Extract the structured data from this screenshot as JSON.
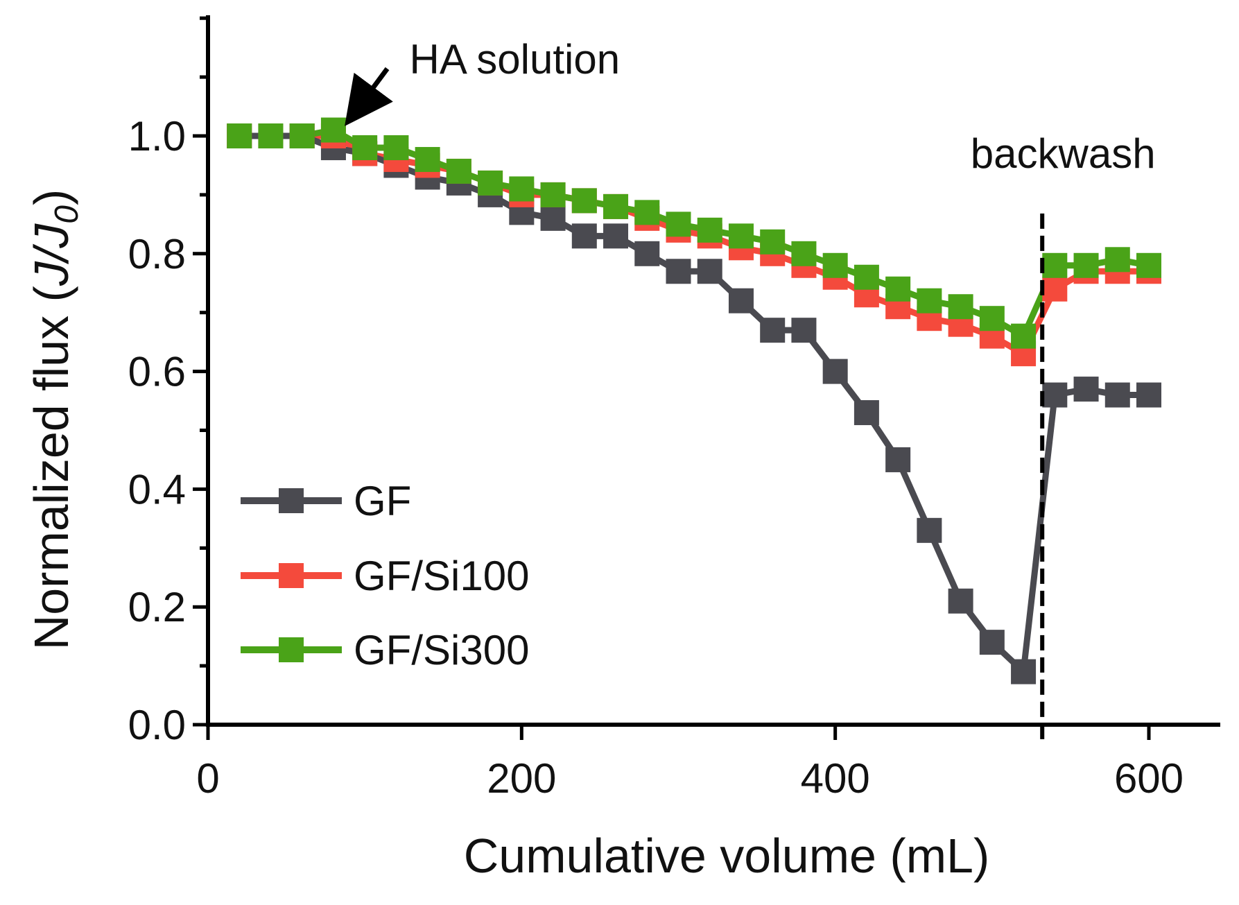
{
  "chart_data": {
    "type": "line",
    "xlabel": "Cumulative volume (mL)",
    "ylabel_prefix": "Normalized flux (",
    "ylabel_italic": "J/J",
    "ylabel_sub": "0",
    "ylabel_suffix": ")",
    "xlim": [
      0,
      650
    ],
    "ylim": [
      0,
      1.2
    ],
    "xticks": [
      0,
      200,
      400,
      600
    ],
    "xtick_labels": [
      "0",
      "200",
      "400",
      "600"
    ],
    "yticks": [
      0,
      0.2,
      0.4,
      0.6,
      0.8,
      1.0
    ],
    "ytick_labels": [
      "0.0",
      "0.2",
      "0.4",
      "0.6",
      "0.8",
      "1.0"
    ],
    "y_minor_step": 0.1,
    "legend_position": "bottom-left",
    "series": [
      {
        "name": "GF",
        "color": "#4a4a50",
        "x": [
          20,
          40,
          60,
          80,
          100,
          120,
          140,
          160,
          180,
          200,
          220,
          240,
          260,
          280,
          300,
          320,
          340,
          360,
          380,
          400,
          420,
          440,
          460,
          480,
          500,
          520,
          540,
          560,
          580,
          600
        ],
        "y": [
          1.0,
          1.0,
          1.0,
          0.98,
          0.97,
          0.95,
          0.93,
          0.92,
          0.9,
          0.87,
          0.86,
          0.83,
          0.83,
          0.8,
          0.77,
          0.77,
          0.72,
          0.67,
          0.67,
          0.6,
          0.53,
          0.45,
          0.33,
          0.21,
          0.14,
          0.09,
          0.56,
          0.57,
          0.56,
          0.56
        ]
      },
      {
        "name": "GF/Si100",
        "color": "#f44a3c",
        "x": [
          20,
          40,
          60,
          80,
          100,
          120,
          140,
          160,
          180,
          200,
          220,
          240,
          260,
          280,
          300,
          320,
          340,
          360,
          380,
          400,
          420,
          440,
          460,
          480,
          500,
          520,
          540,
          560,
          580,
          600
        ],
        "y": [
          1.0,
          1.0,
          1.0,
          1.0,
          0.97,
          0.96,
          0.95,
          0.94,
          0.92,
          0.9,
          0.9,
          0.89,
          0.88,
          0.86,
          0.84,
          0.83,
          0.81,
          0.8,
          0.78,
          0.76,
          0.73,
          0.71,
          0.69,
          0.68,
          0.66,
          0.63,
          0.74,
          0.77,
          0.77,
          0.77
        ]
      },
      {
        "name": "GF/Si300",
        "color": "#4aa318",
        "x": [
          20,
          40,
          60,
          80,
          100,
          120,
          140,
          160,
          180,
          200,
          220,
          240,
          260,
          280,
          300,
          320,
          340,
          360,
          380,
          400,
          420,
          440,
          460,
          480,
          500,
          520,
          540,
          560,
          580,
          600
        ],
        "y": [
          1.0,
          1.0,
          1.0,
          1.01,
          0.98,
          0.98,
          0.96,
          0.94,
          0.92,
          0.91,
          0.9,
          0.89,
          0.88,
          0.87,
          0.85,
          0.84,
          0.83,
          0.82,
          0.8,
          0.78,
          0.76,
          0.74,
          0.72,
          0.71,
          0.69,
          0.66,
          0.78,
          0.78,
          0.79,
          0.78
        ]
      }
    ],
    "annotations": [
      {
        "name": "ha-solution",
        "text": "HA solution",
        "x": 90,
        "y": 1.02
      },
      {
        "name": "backwash",
        "text": "backwash",
        "x": 532,
        "ylim_line": [
          0.05,
          0.88
        ]
      }
    ]
  }
}
